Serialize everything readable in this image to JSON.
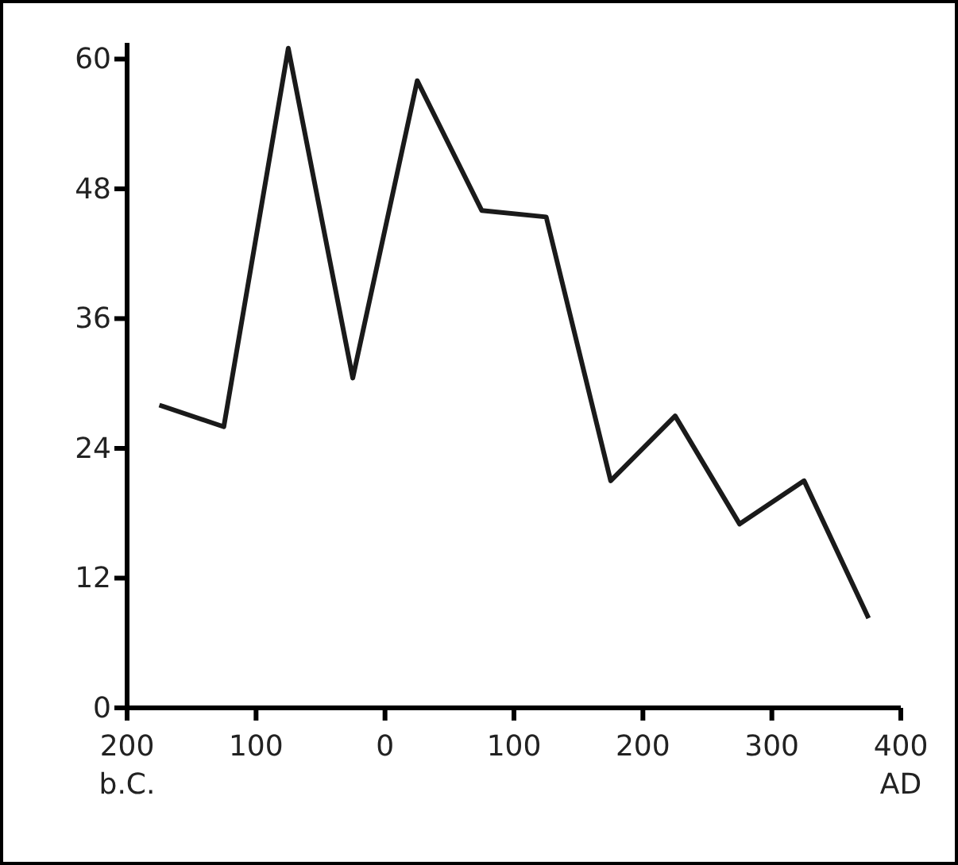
{
  "chart_data": {
    "type": "line",
    "x": [
      -175,
      -125,
      -75,
      -25,
      25,
      75,
      125,
      175,
      225,
      275,
      325,
      375
    ],
    "series": [
      {
        "color": "#1a1a1a",
        "values": [
          28,
          26,
          61,
          30.5,
          58,
          46,
          45.4,
          21,
          27,
          17,
          21,
          8.3
        ]
      }
    ],
    "xlim": [
      -200,
      400
    ],
    "xticks": [
      {
        "value": -200,
        "label": "200\nb.C."
      },
      {
        "value": -100,
        "label": "100"
      },
      0,
      100,
      200,
      300,
      {
        "value": 400,
        "label": "400\nAD"
      }
    ],
    "ylim": [
      0,
      61.5
    ],
    "yticks": [
      0,
      12,
      24,
      36,
      48,
      60
    ],
    "grid": false,
    "marker": "none",
    "line_style": "solid"
  }
}
